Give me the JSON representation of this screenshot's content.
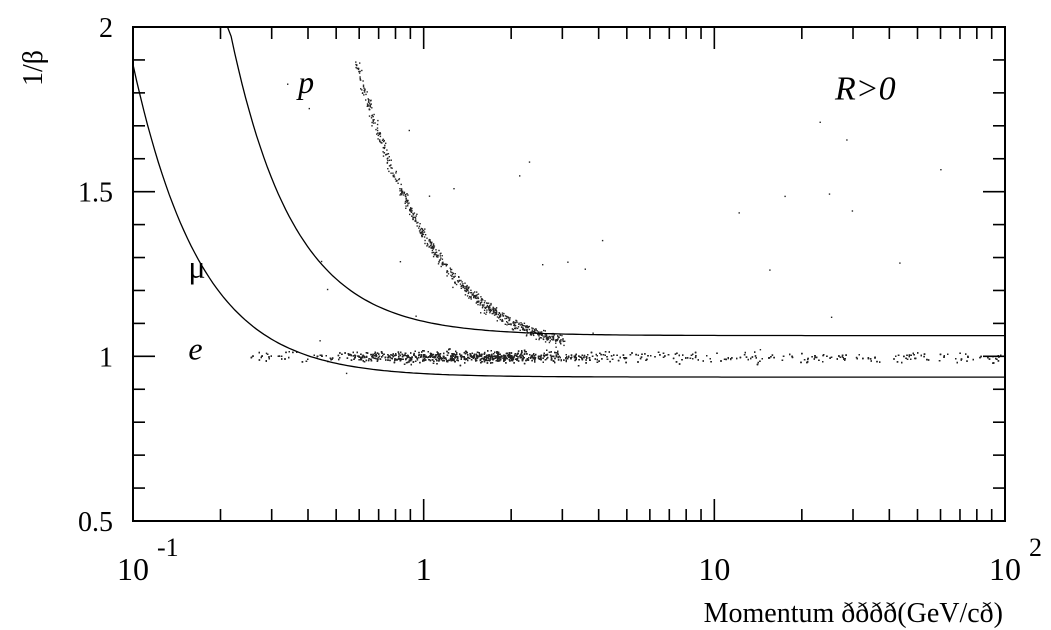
{
  "chart_data": {
    "type": "scatter",
    "xscale": "log",
    "xlim": [
      0.1,
      100
    ],
    "ylim": [
      0.5,
      2
    ],
    "ylabel": "1/β",
    "xlabel": "Momentum ðððð(GeV/cð)",
    "x_tick_labels": [
      {
        "value": 0.1,
        "base": "10",
        "exp": "-1"
      },
      {
        "value": 1,
        "base": "1",
        "exp": ""
      },
      {
        "value": 10,
        "base": "10",
        "exp": ""
      },
      {
        "value": 100,
        "base": "10",
        "exp": "2"
      }
    ],
    "y_tick_labels": [
      {
        "value": 0.5,
        "label": "0.5"
      },
      {
        "value": 1,
        "label": "1"
      },
      {
        "value": 1.5,
        "label": "1.5"
      },
      {
        "value": 2,
        "label": "2"
      }
    ],
    "annotations": [
      {
        "text": "p",
        "x": 0.37,
        "y": 1.8,
        "italic": true
      },
      {
        "text": "μ",
        "x": 0.155,
        "y": 1.24,
        "italic": false
      },
      {
        "text": "e",
        "x": 0.155,
        "y": 0.99,
        "italic": true
      },
      {
        "text": "R>0",
        "x": 26,
        "y": 1.78,
        "italic": true
      }
    ],
    "series": [
      {
        "curve": "upper_band",
        "upper_offset": 0.063,
        "upper_coeff": 0.043
      },
      {
        "curve": "lower_band",
        "lower_offset": 0.063,
        "lower_coeff": 0.005
      }
    ],
    "proton_band": {
      "mass_GeV": 0.938,
      "p_range": [
        0.58,
        3.0
      ]
    },
    "electron_muon_band": {
      "center": 1.0,
      "p_range": [
        0.25,
        100
      ]
    },
    "grid": false
  }
}
